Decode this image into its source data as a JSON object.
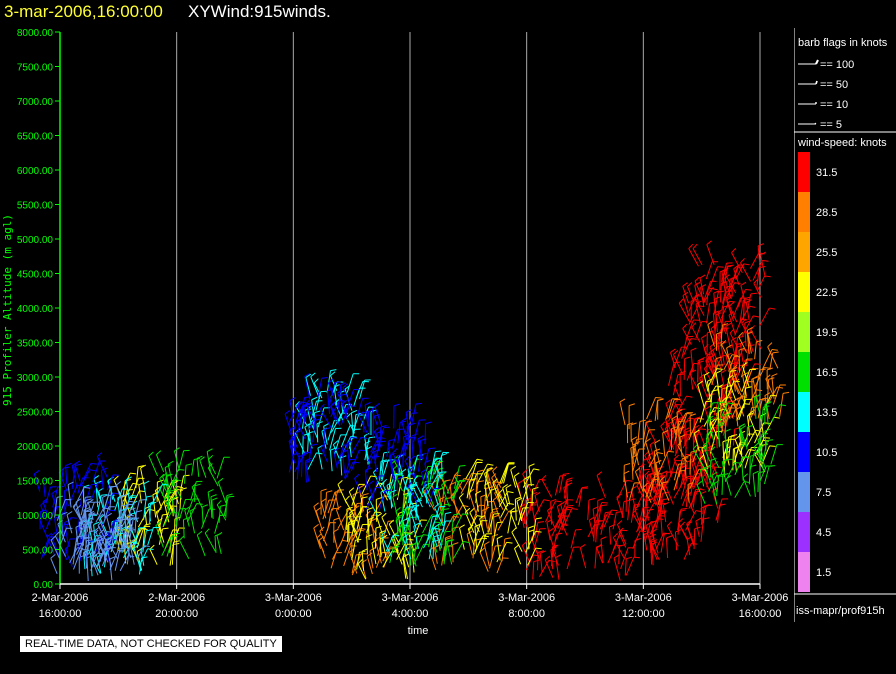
{
  "header": {
    "date": "3-mar-2006,16:00:00",
    "product": "XYWind:915winds."
  },
  "footer": {
    "qc_note": "REAL-TIME DATA, NOT CHECKED FOR QUALITY",
    "source": "iss-mapr/prof915h"
  },
  "legend": {
    "barb_title": "barb flags in knots",
    "barbs": [
      "== 100",
      "== 50",
      "== 10",
      "== 5"
    ],
    "speed_title": "wind-speed: knots",
    "speed_bins": [
      {
        "label": "31.5",
        "color": "#ff0000"
      },
      {
        "label": "28.5",
        "color": "#ff7f00"
      },
      {
        "label": "25.5",
        "color": "#ffa500"
      },
      {
        "label": "22.5",
        "color": "#ffff00"
      },
      {
        "label": "19.5",
        "color": "#a0ff20"
      },
      {
        "label": "16.5",
        "color": "#00e000"
      },
      {
        "label": "13.5",
        "color": "#00ffff"
      },
      {
        "label": "10.5",
        "color": "#0000ff"
      },
      {
        "label": "7.5",
        "color": "#6495ed"
      },
      {
        "label": "4.5",
        "color": "#9b30ff"
      },
      {
        "label": "1.5",
        "color": "#ee82ee"
      }
    ]
  },
  "chart_data": {
    "type": "scatter",
    "title": "",
    "xlabel": "time",
    "ylabel": "915 Profiler Altitude (m agl)",
    "ylim": [
      0,
      8000
    ],
    "yticks": [
      "0.00",
      "500.00",
      "1000.00",
      "1500.00",
      "2000.00",
      "2500.00",
      "3000.00",
      "3500.00",
      "4000.00",
      "4500.00",
      "5000.00",
      "5500.00",
      "6000.00",
      "6500.00",
      "7000.00",
      "7500.00",
      "8000.00"
    ],
    "xticks": [
      {
        "date": "2-Mar-2006",
        "time": "16:00:00"
      },
      {
        "date": "2-Mar-2006",
        "time": "20:00:00"
      },
      {
        "date": "3-Mar-2006",
        "time": "0:00:00"
      },
      {
        "date": "3-Mar-2006",
        "time": "4:00:00"
      },
      {
        "date": "3-Mar-2006",
        "time": "8:00:00"
      },
      {
        "date": "3-Mar-2006",
        "time": "12:00:00"
      },
      {
        "date": "3-Mar-2006",
        "time": "16:00:00"
      }
    ],
    "xlim": [
      "2-Mar-2006 16:00:00",
      "3-Mar-2006 16:00:00"
    ],
    "grid": "vertical",
    "colors": {
      "axis": "#00ff00",
      "grid": "#aaaaaa"
    },
    "series": [
      {
        "wind_speed_bin": "31.5",
        "x": [
          "3-Mar-2006 09:00:00",
          "3-Mar-2006 11:30:00",
          "3-Mar-2006 13:00:00",
          "3-Mar-2006 14:00:00",
          "3-Mar-2006 14:30:00",
          "3-Mar-2006 15:00:00",
          "3-Mar-2006 13:30:00"
        ],
        "y": [
          700,
          600,
          900,
          2500,
          3500,
          4000,
          1500
        ]
      },
      {
        "wind_speed_bin": "28.5",
        "x": [
          "3-Mar-2006 02:00:00",
          "3-Mar-2006 06:00:00",
          "3-Mar-2006 12:30:00",
          "3-Mar-2006 15:30:00"
        ],
        "y": [
          500,
          800,
          1800,
          2800
        ]
      },
      {
        "wind_speed_bin": "22.5",
        "x": [
          "2-Mar-2006 19:00:00",
          "3-Mar-2006 03:00:00",
          "3-Mar-2006 07:00:00",
          "3-Mar-2006 15:00:00"
        ],
        "y": [
          800,
          700,
          900,
          2200
        ]
      },
      {
        "wind_speed_bin": "16.5",
        "x": [
          "2-Mar-2006 20:30:00",
          "3-Mar-2006 04:30:00",
          "3-Mar-2006 15:15:00"
        ],
        "y": [
          1000,
          900,
          1800
        ]
      },
      {
        "wind_speed_bin": "13.5",
        "x": [
          "2-Mar-2006 18:00:00",
          "3-Mar-2006 01:30:00",
          "3-Mar-2006 04:00:00"
        ],
        "y": [
          600,
          2200,
          1000
        ]
      },
      {
        "wind_speed_bin": "10.5",
        "x": [
          "2-Mar-2006 16:30:00",
          "3-Mar-2006 01:00:00",
          "3-Mar-2006 03:30:00"
        ],
        "y": [
          900,
          2100,
          1700
        ]
      },
      {
        "wind_speed_bin": "7.5",
        "x": [
          "2-Mar-2006 17:00:00",
          "2-Mar-2006 17:30:00"
        ],
        "y": [
          500,
          300
        ]
      }
    ]
  }
}
